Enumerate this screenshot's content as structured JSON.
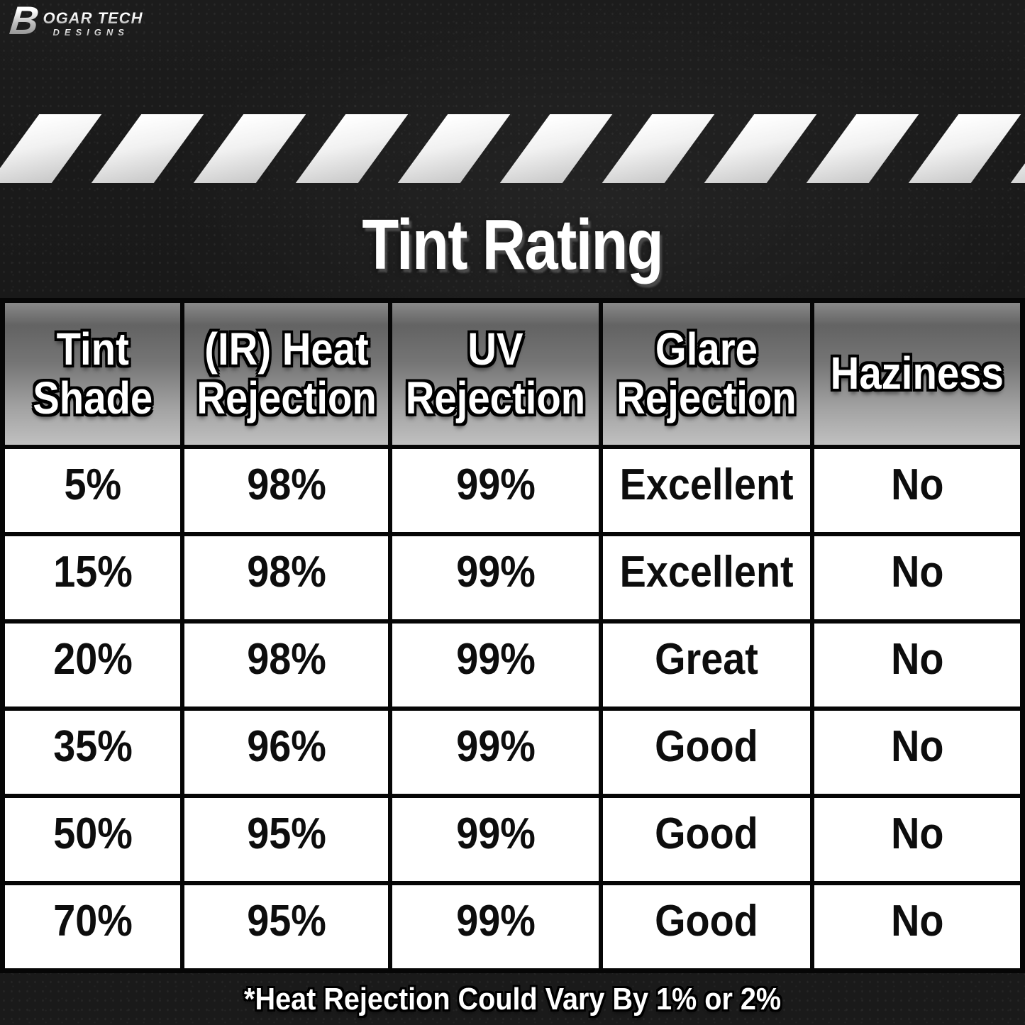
{
  "brand": {
    "mark": "B",
    "name": "OGAR TECH",
    "sub": "DESIGNS"
  },
  "title": "Tint Rating",
  "footnote": "*Heat Rejection Could Vary By 1% or 2%",
  "chart_data": {
    "type": "table",
    "title": "Tint Rating",
    "columns": [
      "Tint Shade",
      "(IR) Heat Rejection",
      "UV Rejection",
      "Glare Rejection",
      "Haziness"
    ],
    "rows": [
      [
        "5%",
        "98%",
        "99%",
        "Excellent",
        "No"
      ],
      [
        "15%",
        "98%",
        "99%",
        "Excellent",
        "No"
      ],
      [
        "20%",
        "98%",
        "99%",
        "Great",
        "No"
      ],
      [
        "35%",
        "96%",
        "99%",
        "Good",
        "No"
      ],
      [
        "50%",
        "95%",
        "99%",
        "Good",
        "No"
      ],
      [
        "70%",
        "95%",
        "99%",
        "Good",
        "No"
      ]
    ],
    "footnote": "*Heat Rejection Could Vary By 1% or 2%"
  },
  "colors": {
    "background": "#191919",
    "table_border": "#060606",
    "cell_background": "#ffffff",
    "header_gradient_top": "#636363",
    "header_gradient_bottom": "#c0c0c0",
    "stripe": "#f1f1f1",
    "text_light": "#ffffff",
    "text_dark": "#0d0d0d"
  }
}
